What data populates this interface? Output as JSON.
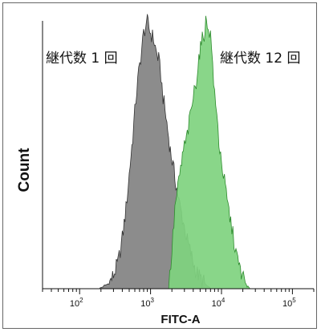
{
  "chart_data": {
    "type": "area",
    "xlabel": "FITC-A",
    "ylabel": "Count",
    "x_scale": "log",
    "xlim": [
      30,
      200000
    ],
    "ylim": [
      0,
      100
    ],
    "x_ticks": [
      {
        "value": 100,
        "base": "10",
        "exp": "2"
      },
      {
        "value": 1000,
        "base": "10",
        "exp": "3"
      },
      {
        "value": 10000,
        "base": "10",
        "exp": "4"
      },
      {
        "value": 100000,
        "base": "10",
        "exp": "5"
      }
    ],
    "annotations": [
      {
        "text": "継代数 1 回",
        "series": "passage_1"
      },
      {
        "text": "継代数 12 回",
        "series": "passage_12"
      }
    ],
    "series": [
      {
        "key": "passage_1",
        "color": "#8c8c8c",
        "stroke": "#333333",
        "points": [
          [
            190,
            0
          ],
          [
            220,
            1
          ],
          [
            260,
            2
          ],
          [
            300,
            5
          ],
          [
            350,
            10
          ],
          [
            400,
            19
          ],
          [
            450,
            30
          ],
          [
            500,
            43
          ],
          [
            560,
            57
          ],
          [
            620,
            71
          ],
          [
            680,
            81
          ],
          [
            750,
            90
          ],
          [
            800,
            96
          ],
          [
            860,
            99
          ],
          [
            900,
            100
          ],
          [
            950,
            98
          ],
          [
            1000,
            96
          ],
          [
            1100,
            94
          ],
          [
            1200,
            89
          ],
          [
            1300,
            86
          ],
          [
            1400,
            80
          ],
          [
            1500,
            72
          ],
          [
            1700,
            62
          ],
          [
            1900,
            52
          ],
          [
            2200,
            42
          ],
          [
            2500,
            33
          ],
          [
            2900,
            25
          ],
          [
            3300,
            18
          ],
          [
            3800,
            12
          ],
          [
            4300,
            7
          ],
          [
            5000,
            4
          ],
          [
            5800,
            2
          ],
          [
            6500,
            0.5
          ],
          [
            7000,
            0
          ]
        ]
      },
      {
        "key": "passage_12",
        "color": "#7fd27f",
        "stroke": "#2e8b2e",
        "points": [
          [
            1800,
            0
          ],
          [
            2000,
            14
          ],
          [
            2200,
            30
          ],
          [
            2500,
            40
          ],
          [
            2900,
            52
          ],
          [
            3200,
            56
          ],
          [
            3500,
            62
          ],
          [
            4000,
            72
          ],
          [
            4400,
            78
          ],
          [
            4800,
            87
          ],
          [
            5200,
            92
          ],
          [
            5700,
            96
          ],
          [
            6000,
            100
          ],
          [
            6500,
            99
          ],
          [
            7000,
            95
          ],
          [
            7500,
            85
          ],
          [
            8000,
            72
          ],
          [
            8600,
            65
          ],
          [
            9200,
            55
          ],
          [
            10000,
            48
          ],
          [
            11000,
            40
          ],
          [
            12000,
            33
          ],
          [
            13500,
            25
          ],
          [
            15000,
            18
          ],
          [
            17000,
            10
          ],
          [
            19000,
            6
          ],
          [
            21000,
            3
          ],
          [
            23000,
            1
          ],
          [
            25000,
            0
          ]
        ]
      }
    ]
  }
}
